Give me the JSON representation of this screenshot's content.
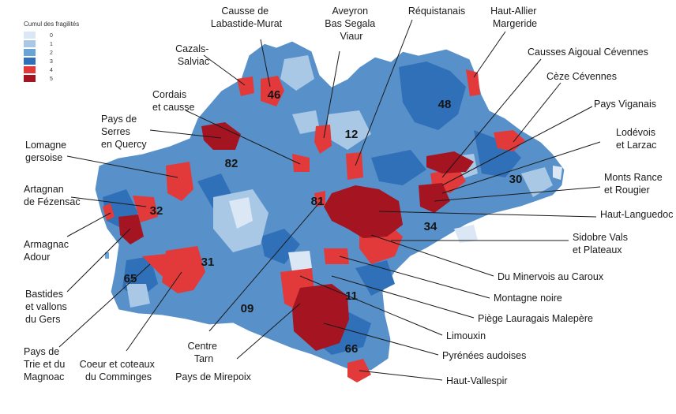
{
  "legend": {
    "title": "Cumul des fragilités",
    "levels": [
      {
        "value": "0",
        "color": "#dbe7f5"
      },
      {
        "value": "1",
        "color": "#a9c8e6"
      },
      {
        "value": "2",
        "color": "#6aa3d6"
      },
      {
        "value": "3",
        "color": "#3070b8"
      },
      {
        "value": "4",
        "color": "#e23a3a"
      },
      {
        "value": "5",
        "color": "#a51421"
      }
    ]
  },
  "departments": [
    "46",
    "48",
    "12",
    "82",
    "30",
    "32",
    "81",
    "34",
    "31",
    "65",
    "11",
    "09",
    "66"
  ],
  "territories": {
    "causse_labastide": [
      "Causse de",
      "Labastide-Murat"
    ],
    "aveyron_segala": [
      "Aveyron",
      "Bas Segala",
      "Viaur"
    ],
    "requistanais": [
      "Réquistanais"
    ],
    "haut_allier": [
      "Haut-Allier",
      "Margeride"
    ],
    "cazals": [
      "Cazals-",
      "Salviac"
    ],
    "causses_aigoual": [
      "Causses Aigoual Cévennes"
    ],
    "ceze": [
      "Cèze Cévennes"
    ],
    "cordais": [
      "Cordais",
      "et causse"
    ],
    "pays_viganais": [
      "Pays Viganais"
    ],
    "pays_serres": [
      "Pays de",
      "Serres",
      "en Quercy"
    ],
    "lodevois": [
      "Lodévois",
      "et Larzac"
    ],
    "lomagne": [
      "Lomagne",
      "gersoise"
    ],
    "monts_rance": [
      "Monts Rance",
      "et Rougier"
    ],
    "artagnan": [
      "Artagnan",
      "de Fézensac"
    ],
    "haut_languedoc": [
      "Haut-Languedoc"
    ],
    "armagnac": [
      "Armagnac",
      "Adour"
    ],
    "sidobre": [
      "Sidobre Vals",
      "et Plateaux"
    ],
    "bastides": [
      "Bastides",
      "et vallons",
      "du Gers"
    ],
    "minervois": [
      "Du Minervois au Caroux"
    ],
    "montagne_noire": [
      "Montagne noire"
    ],
    "piege": [
      "Piège Lauragais Malepère"
    ],
    "limouxin": [
      "Limouxin"
    ],
    "pays_trie": [
      "Pays de",
      "Trie et du",
      "Magnoac"
    ],
    "comminges": [
      "Coeur et coteaux",
      "du Comminges"
    ],
    "centre_tarn": [
      "Centre",
      "Tarn"
    ],
    "mirepoix": [
      "Pays de Mirepoix"
    ],
    "pyrenees": [
      "Pyrénées audoises"
    ],
    "haut_vallespir": [
      "Haut-Vallespir"
    ]
  }
}
